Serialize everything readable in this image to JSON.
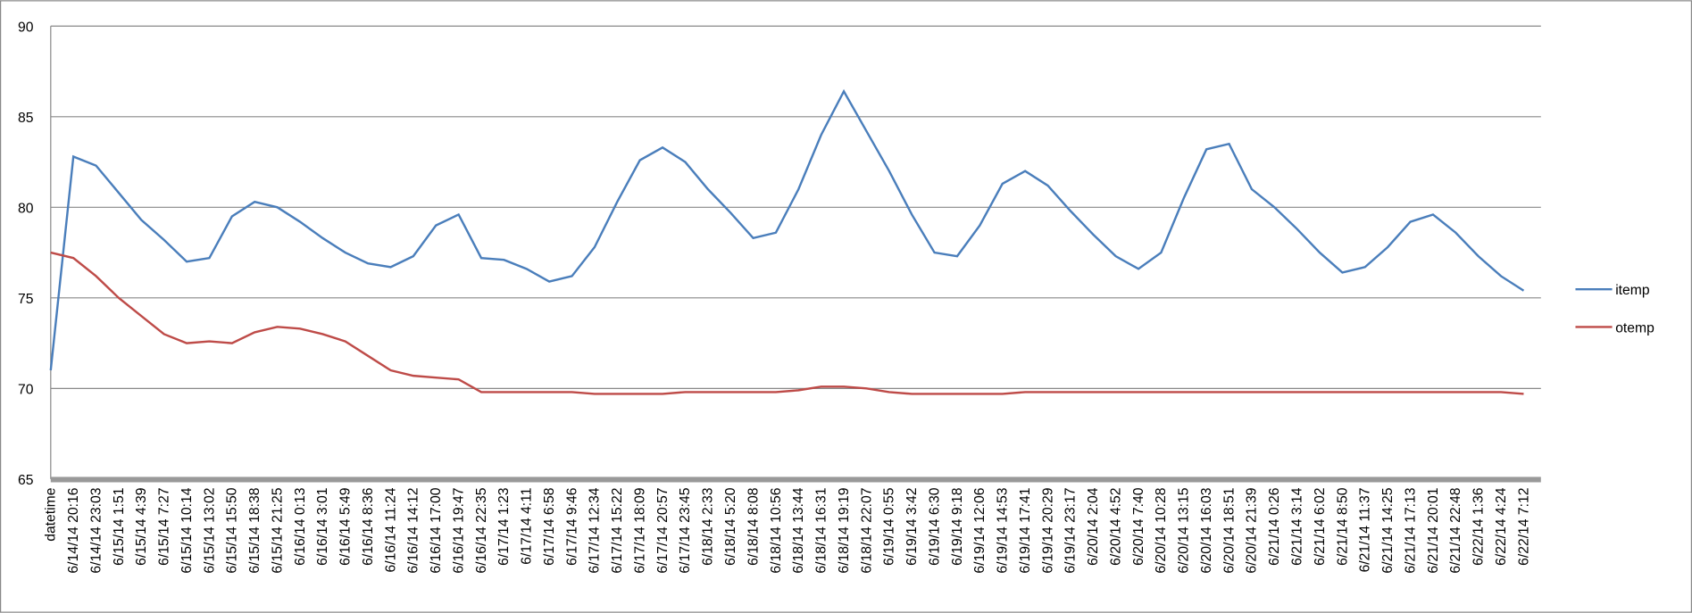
{
  "chart_data": {
    "type": "line",
    "categories": [
      "datetime",
      "6/14/14 20:16",
      "6/14/14 23:03",
      "6/15/14 1:51",
      "6/15/14 4:39",
      "6/15/14 7:27",
      "6/15/14 10:14",
      "6/15/14 13:02",
      "6/15/14 15:50",
      "6/15/14 18:38",
      "6/15/14 21:25",
      "6/16/14 0:13",
      "6/16/14 3:01",
      "6/16/14 5:49",
      "6/16/14 8:36",
      "6/16/14 11:24",
      "6/16/14 14:12",
      "6/16/14 17:00",
      "6/16/14 19:47",
      "6/16/14 22:35",
      "6/17/14 1:23",
      "6/17/14 4:11",
      "6/17/14 6:58",
      "6/17/14 9:46",
      "6/17/14 12:34",
      "6/17/14 15:22",
      "6/17/14 18:09",
      "6/17/14 20:57",
      "6/17/14 23:45",
      "6/18/14 2:33",
      "6/18/14 5:20",
      "6/18/14 8:08",
      "6/18/14 10:56",
      "6/18/14 13:44",
      "6/18/14 16:31",
      "6/18/14 19:19",
      "6/18/14 22:07",
      "6/19/14 0:55",
      "6/19/14 3:42",
      "6/19/14 6:30",
      "6/19/14 9:18",
      "6/19/14 12:06",
      "6/19/14 14:53",
      "6/19/14 17:41",
      "6/19/14 20:29",
      "6/19/14 23:17",
      "6/20/14 2:04",
      "6/20/14 4:52",
      "6/20/14 7:40",
      "6/20/14 10:28",
      "6/20/14 13:15",
      "6/20/14 16:03",
      "6/20/14 18:51",
      "6/20/14 21:39",
      "6/21/14 0:26",
      "6/21/14 3:14",
      "6/21/14 6:02",
      "6/21/14 8:50",
      "6/21/14 11:37",
      "6/21/14 14:25",
      "6/21/14 17:13",
      "6/21/14 20:01",
      "6/21/14 22:48",
      "6/22/14 1:36",
      "6/22/14 4:24",
      "6/22/14 7:12"
    ],
    "series": [
      {
        "name": "itemp",
        "color": "#4a7ebb",
        "values": [
          71,
          82.8,
          82.3,
          80.8,
          79.3,
          78.2,
          77.0,
          77.2,
          79.5,
          80.3,
          80.0,
          79.2,
          78.3,
          77.5,
          76.9,
          76.7,
          77.3,
          79.0,
          79.6,
          77.2,
          77.1,
          76.6,
          75.9,
          76.2,
          77.8,
          80.3,
          82.6,
          83.3,
          82.5,
          81.0,
          79.7,
          78.3,
          78.6,
          81.0,
          84.0,
          86.4,
          84.2,
          82.0,
          79.6,
          77.5,
          77.3,
          79.0,
          81.3,
          82.0,
          81.2,
          79.8,
          78.5,
          77.3,
          76.6,
          77.5,
          80.5,
          83.2,
          83.5,
          81.0,
          80.0,
          78.8,
          77.5,
          76.4,
          76.7,
          77.8,
          79.2,
          79.6,
          78.6,
          77.3,
          76.2,
          75.4
        ]
      },
      {
        "name": "otemp",
        "color": "#be4b48",
        "values": [
          77.5,
          77.2,
          76.2,
          75.0,
          74.0,
          73.0,
          72.5,
          72.6,
          72.5,
          73.1,
          73.4,
          73.3,
          73.0,
          72.6,
          71.8,
          71.0,
          70.7,
          70.6,
          70.5,
          69.8,
          69.8,
          69.8,
          69.8,
          69.8,
          69.7,
          69.7,
          69.7,
          69.7,
          69.8,
          69.8,
          69.8,
          69.8,
          69.8,
          69.9,
          70.1,
          70.1,
          70.0,
          69.8,
          69.7,
          69.7,
          69.7,
          69.7,
          69.7,
          69.8,
          69.8,
          69.8,
          69.8,
          69.8,
          69.8,
          69.8,
          69.8,
          69.8,
          69.8,
          69.8,
          69.8,
          69.8,
          69.8,
          69.8,
          69.8,
          69.8,
          69.8,
          69.8,
          69.8,
          69.8,
          69.8,
          69.7
        ]
      }
    ],
    "ylim": [
      65,
      90
    ],
    "yticks": [
      65,
      70,
      75,
      80,
      85,
      90
    ],
    "grid": true,
    "legend": "right"
  }
}
